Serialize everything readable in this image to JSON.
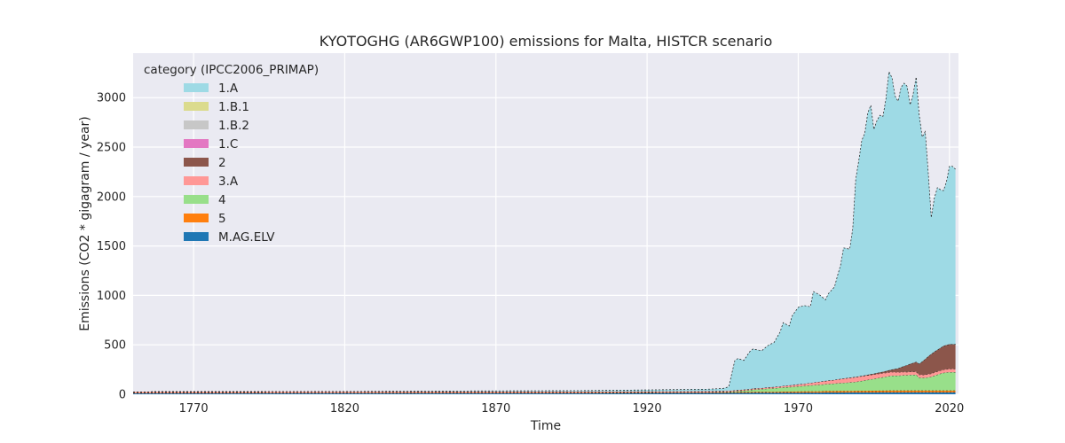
{
  "chart_data": {
    "type": "area",
    "stacked": true,
    "title": "KYOTOGHG (AR6GWP100) emissions for Malta, HISTCR scenario",
    "xlabel": "Time",
    "ylabel": "Emissions (CO2 * gigagram / year)",
    "xlim": [
      1750,
      2023
    ],
    "ylim": [
      0,
      3450
    ],
    "xticks": [
      1770,
      1820,
      1870,
      1920,
      1970,
      2020
    ],
    "yticks": [
      0,
      500,
      1000,
      1500,
      2000,
      2500,
      3000
    ],
    "grid": true,
    "legend": {
      "title": "category (IPCC2006_PRIMAP)",
      "position": "top-left"
    },
    "x": [
      1750,
      1800,
      1850,
      1900,
      1940,
      1945,
      1947,
      1949,
      1950,
      1952,
      1954,
      1955,
      1957,
      1958,
      1960,
      1962,
      1964,
      1965,
      1967,
      1968,
      1970,
      1972,
      1974,
      1975,
      1977,
      1979,
      1980,
      1982,
      1983,
      1984,
      1985,
      1987,
      1988,
      1989,
      1990,
      1991,
      1992,
      1993,
      1994,
      1995,
      1996,
      1997,
      1998,
      1999,
      2000,
      2001,
      2002,
      2003,
      2004,
      2005,
      2006,
      2007,
      2008,
      2009,
      2010,
      2011,
      2012,
      2013,
      2014,
      2015,
      2016,
      2017,
      2018,
      2019,
      2020,
      2021,
      2022
    ],
    "series": [
      {
        "name": "M.AG.ELV",
        "color": "#1f77b4",
        "values": [
          10,
          11,
          12,
          12,
          13,
          13,
          13,
          14,
          14,
          14,
          14,
          15,
          15,
          15,
          15,
          15,
          16,
          16,
          16,
          16,
          16,
          17,
          17,
          17,
          17,
          18,
          18,
          18,
          18,
          18,
          18,
          19,
          19,
          19,
          19,
          19,
          19,
          19,
          19,
          19,
          19,
          20,
          20,
          20,
          20,
          20,
          20,
          20,
          20,
          20,
          20,
          20,
          20,
          20,
          20,
          20,
          20,
          20,
          20,
          20,
          20,
          20,
          20,
          20,
          20,
          20,
          20
        ]
      },
      {
        "name": "5",
        "color": "#ff7f0e",
        "values": [
          4,
          4,
          5,
          5,
          6,
          7,
          7,
          7,
          8,
          8,
          8,
          9,
          9,
          9,
          10,
          10,
          10,
          11,
          11,
          11,
          12,
          12,
          13,
          13,
          13,
          14,
          14,
          14,
          15,
          15,
          15,
          15,
          15,
          16,
          16,
          16,
          16,
          16,
          17,
          17,
          17,
          17,
          17,
          17,
          18,
          18,
          18,
          18,
          18,
          18,
          18,
          18,
          18,
          18,
          18,
          18,
          18,
          18,
          18,
          18,
          18,
          18,
          18,
          18,
          18,
          18,
          18
        ]
      },
      {
        "name": "4",
        "color": "#98df8a",
        "values": [
          0,
          0,
          0,
          0,
          2,
          3,
          5,
          8,
          10,
          15,
          20,
          23,
          26,
          28,
          32,
          36,
          40,
          42,
          46,
          48,
          52,
          56,
          60,
          62,
          66,
          70,
          72,
          76,
          78,
          80,
          82,
          86,
          88,
          90,
          95,
          100,
          105,
          110,
          115,
          120,
          125,
          130,
          135,
          140,
          145,
          150,
          150,
          150,
          152,
          155,
          155,
          158,
          158,
          160,
          130,
          128,
          128,
          135,
          138,
          150,
          160,
          170,
          178,
          182,
          185,
          185,
          185
        ]
      },
      {
        "name": "3.A",
        "color": "#ff9896",
        "values": [
          10,
          10,
          10,
          10,
          10,
          10,
          10,
          10,
          10,
          10,
          10,
          11,
          11,
          11,
          12,
          13,
          14,
          15,
          17,
          18,
          20,
          22,
          25,
          27,
          30,
          33,
          35,
          38,
          40,
          42,
          44,
          46,
          48,
          48,
          48,
          47,
          47,
          46,
          45,
          44,
          43,
          42,
          41,
          40,
          38,
          37,
          36,
          35,
          34,
          33,
          32,
          32,
          31,
          30,
          30,
          31,
          31,
          31,
          32,
          32,
          32,
          32,
          33,
          33,
          33,
          33,
          33
        ]
      },
      {
        "name": "2",
        "color": "#8c564b",
        "values": [
          0,
          0,
          0,
          0,
          0,
          0,
          0,
          0,
          0,
          0,
          0,
          0,
          0,
          0,
          0,
          0,
          0,
          0,
          0,
          0,
          0,
          0,
          0,
          0,
          0,
          0,
          0,
          0,
          0,
          1,
          1,
          2,
          2,
          3,
          3,
          4,
          5,
          6,
          7,
          9,
          11,
          13,
          15,
          18,
          22,
          26,
          32,
          40,
          50,
          60,
          70,
          80,
          90,
          100,
          110,
          135,
          160,
          180,
          200,
          210,
          220,
          230,
          240,
          245,
          250,
          250,
          250
        ]
      },
      {
        "name": "1.C",
        "color": "#e377c2",
        "values": [
          0,
          0,
          0,
          0,
          0,
          0,
          0,
          0,
          0,
          0,
          0,
          0,
          0,
          0,
          0,
          0,
          0,
          0,
          0,
          0,
          0,
          0,
          0,
          0,
          0,
          0,
          0,
          0,
          0,
          0,
          0,
          0,
          0,
          0,
          0,
          0,
          0,
          0,
          0,
          0,
          0,
          0,
          0,
          0,
          0,
          0,
          0,
          0,
          0,
          0,
          0,
          0,
          0,
          0,
          0,
          0,
          0,
          0,
          0,
          0,
          0,
          0,
          0,
          0,
          0,
          0,
          0
        ]
      },
      {
        "name": "1.B.2",
        "color": "#c7c7c7",
        "values": [
          0,
          0,
          0,
          0,
          0,
          0,
          0,
          0,
          0,
          0,
          0,
          0,
          0,
          0,
          0,
          0,
          0,
          0,
          0,
          0,
          0,
          0,
          0,
          0,
          0,
          0,
          0,
          0,
          0,
          0,
          0,
          0,
          0,
          0,
          0,
          0,
          0,
          0,
          0,
          0,
          0,
          0,
          0,
          0,
          0,
          0,
          0,
          0,
          0,
          0,
          0,
          0,
          0,
          0,
          0,
          0,
          0,
          0,
          0,
          0,
          0,
          0,
          0,
          0,
          0,
          0,
          0
        ]
      },
      {
        "name": "1.B.1",
        "color": "#dbdb8d",
        "values": [
          0,
          0,
          0,
          0,
          0,
          0,
          0,
          0,
          0,
          0,
          0,
          0,
          0,
          0,
          0,
          0,
          0,
          0,
          0,
          0,
          0,
          0,
          0,
          0,
          0,
          0,
          0,
          0,
          0,
          0,
          0,
          0,
          0,
          0,
          0,
          0,
          0,
          0,
          0,
          0,
          0,
          0,
          0,
          0,
          0,
          0,
          0,
          0,
          0,
          0,
          0,
          0,
          0,
          0,
          0,
          0,
          0,
          0,
          0,
          0,
          0,
          0,
          0,
          0,
          0,
          0,
          0
        ]
      },
      {
        "name": "1.A",
        "color": "#9edae5",
        "values": [
          0,
          0,
          5,
          10,
          20,
          25,
          40,
          300,
          320,
          295,
          380,
          400,
          385,
          380,
          425,
          450,
          550,
          640,
          600,
          700,
          780,
          790,
          770,
          920,
          880,
          820,
          880,
          940,
          1050,
          1150,
          1320,
          1300,
          1500,
          2000,
          2180,
          2380,
          2450,
          2650,
          2720,
          2470,
          2550,
          2600,
          2580,
          2750,
          3020,
          2950,
          2760,
          2700,
          2830,
          2860,
          2820,
          2620,
          2720,
          2880,
          2520,
          2270,
          2300,
          1860,
          1380,
          1550,
          1640,
          1600,
          1570,
          1650,
          1800,
          1800,
          1770
        ]
      }
    ]
  }
}
